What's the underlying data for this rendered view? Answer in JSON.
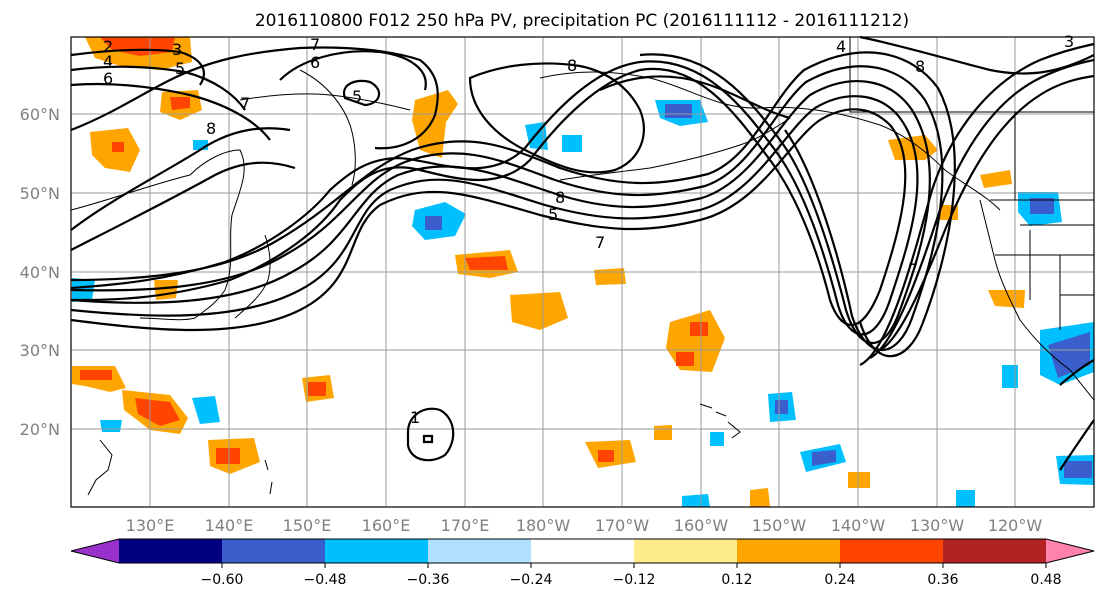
{
  "title": "2016110800 F012 250 hPa PV, precipitation PC (2016111112 - 2016111212)",
  "lat_labels": [
    "60°N",
    "50°N",
    "40°N",
    "30°N",
    "20°N"
  ],
  "lon_labels": [
    "130°E",
    "140°E",
    "150°E",
    "160°E",
    "170°E",
    "180°W",
    "170°W",
    "160°W",
    "150°W",
    "140°W",
    "130°W",
    "120°W"
  ],
  "contour_levels": [
    "2",
    "3",
    "4",
    "5",
    "6",
    "7",
    "8",
    "5",
    "6",
    "8",
    "5",
    "8",
    "7",
    "4",
    "3",
    "8",
    "1",
    "7",
    "7"
  ],
  "colorbar": {
    "ticks": [
      "−0.60",
      "−0.48",
      "−0.36",
      "−0.24",
      "−0.12",
      "0.12",
      "0.24",
      "0.36",
      "0.48",
      "0.60"
    ],
    "colors": [
      "#9932cc",
      "#000080",
      "#3a5fcd",
      "#00bfff",
      "#b0e2ff",
      "#ffffff",
      "#ffec8b",
      "#ffa500",
      "#ff4500",
      "#b22222",
      "#ff82ab"
    ]
  },
  "map_features": {
    "colors": {
      "strong_negative": "#3a5fcd",
      "negative": "#00bfff",
      "weak_negative": "#b0e2ff",
      "weak_positive": "#ffec8b",
      "positive": "#ffa500",
      "strong_positive": "#ff4500"
    }
  }
}
